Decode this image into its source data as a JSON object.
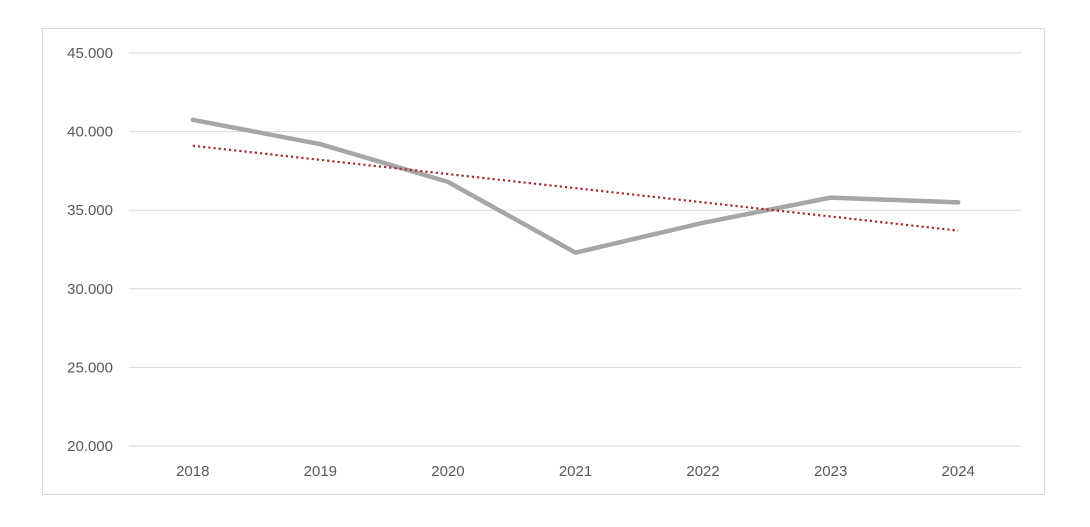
{
  "chart_data": {
    "type": "line",
    "title": "",
    "xlabel": "",
    "ylabel": "",
    "categories": [
      "2018",
      "2019",
      "2020",
      "2021",
      "2022",
      "2023",
      "2024"
    ],
    "ylim": [
      20000,
      45000
    ],
    "yticks": [
      20000,
      25000,
      30000,
      35000,
      40000,
      45000
    ],
    "ytick_labels": [
      "20.000",
      "25.000",
      "30.000",
      "35.000",
      "40.000",
      "45.000"
    ],
    "grid": "horizontal",
    "legend": "none",
    "series": [
      {
        "values": [
          40750,
          39200,
          36800,
          32300,
          34200,
          35800,
          35500
        ],
        "color": "#a6a6a6",
        "style": "solid"
      }
    ],
    "trendline": {
      "type": "linear",
      "values": [
        39100,
        38200,
        37300,
        36400,
        35500,
        34600,
        33700
      ],
      "color": "#a52a2a",
      "style": "dotted"
    }
  }
}
